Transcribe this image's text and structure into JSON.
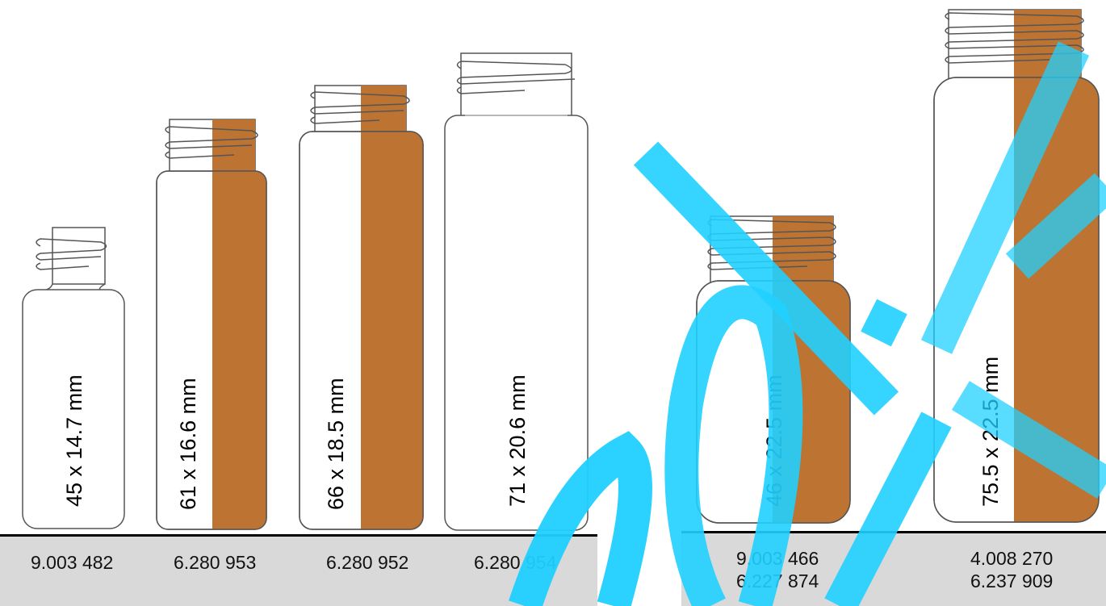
{
  "colors": {
    "amber": "#bd7332",
    "glass_outline": "#555555",
    "footer_bar": "#d9d9d9",
    "watermark": "#20d0ff"
  },
  "watermark": {
    "text": "labl.kz"
  },
  "vials": [
    {
      "id": "v1",
      "dimension": "45 x 14.7 mm",
      "codes": [
        "9.003 482"
      ],
      "amber": false
    },
    {
      "id": "v2",
      "dimension": "61 x 16.6 mm",
      "codes": [
        "6.280 953"
      ],
      "amber": true
    },
    {
      "id": "v3",
      "dimension": "66 x 18.5 mm",
      "codes": [
        "6.280 952"
      ],
      "amber": true
    },
    {
      "id": "v4",
      "dimension": "71 x 20.6 mm",
      "codes": [
        "6.280 954"
      ],
      "amber": false
    },
    {
      "id": "v5",
      "dimension": "46 x 22.5 mm",
      "codes": [
        "9.003 466",
        "6.227 874"
      ],
      "amber": true
    },
    {
      "id": "v6",
      "dimension": "75.5 x 22.5 mm",
      "codes": [
        "4.008 270",
        "6.237 909"
      ],
      "amber": true
    }
  ]
}
